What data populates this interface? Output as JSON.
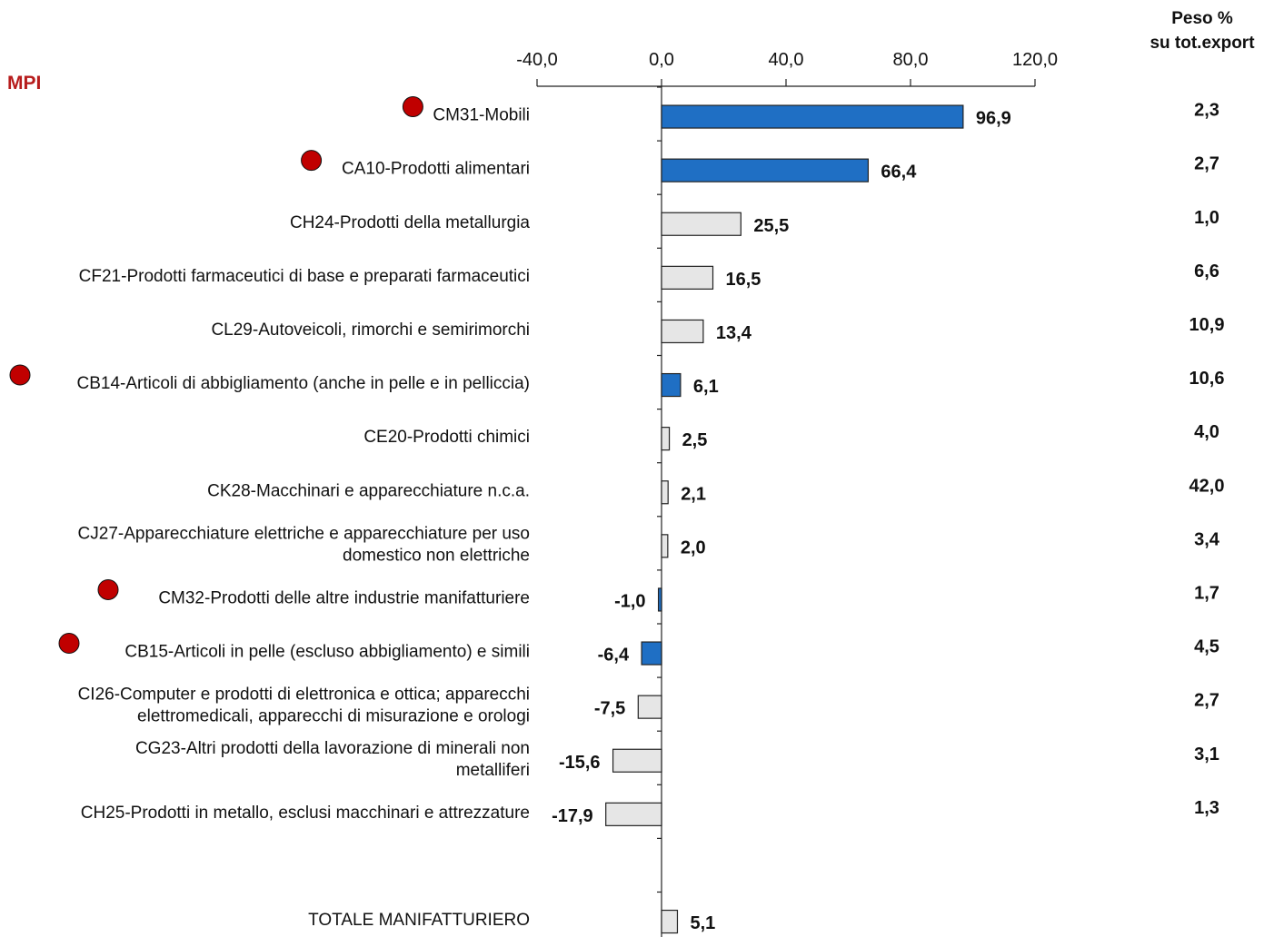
{
  "chart_data": {
    "type": "bar",
    "orientation": "horizontal",
    "xlim": [
      -40,
      120
    ],
    "x_ticks": [
      -40,
      0,
      40,
      80,
      120
    ],
    "x_tick_labels": [
      "-40,0",
      "0,0",
      "40,0",
      "80,0",
      "120,0"
    ],
    "grid": false,
    "mpi_label": "MPI",
    "peso_header": [
      "Peso %",
      "su tot.export"
    ],
    "colors": {
      "mpi_bar": "#1f6fc4",
      "other_bar": "#e6e6e6",
      "bar_stroke": "#222222",
      "mpi_dot": "#c00000"
    },
    "categories": [
      {
        "label": [
          "CM31-Mobili"
        ],
        "value": 96.9,
        "value_label": "96,9",
        "peso": "2,3",
        "mpi": true
      },
      {
        "label": [
          "CA10-Prodotti alimentari"
        ],
        "value": 66.4,
        "value_label": "66,4",
        "peso": "2,7",
        "mpi": true
      },
      {
        "label": [
          "CH24-Prodotti della metallurgia"
        ],
        "value": 25.5,
        "value_label": "25,5",
        "peso": "1,0",
        "mpi": false
      },
      {
        "label": [
          "CF21-Prodotti farmaceutici di base e preparati farmaceutici"
        ],
        "value": 16.5,
        "value_label": "16,5",
        "peso": "6,6",
        "mpi": false
      },
      {
        "label": [
          "CL29-Autoveicoli, rimorchi e semirimorchi"
        ],
        "value": 13.4,
        "value_label": "13,4",
        "peso": "10,9",
        "mpi": false
      },
      {
        "label": [
          "CB14-Articoli di abbigliamento (anche in pelle e in pelliccia)"
        ],
        "value": 6.1,
        "value_label": "6,1",
        "peso": "10,6",
        "mpi": true
      },
      {
        "label": [
          "CE20-Prodotti chimici"
        ],
        "value": 2.5,
        "value_label": "2,5",
        "peso": "4,0",
        "mpi": false
      },
      {
        "label": [
          "CK28-Macchinari e apparecchiature n.c.a."
        ],
        "value": 2.1,
        "value_label": "2,1",
        "peso": "42,0",
        "mpi": false
      },
      {
        "label": [
          "CJ27-Apparecchiature elettriche e apparecchiature per uso",
          "domestico non elettriche"
        ],
        "value": 2.0,
        "value_label": "2,0",
        "peso": "3,4",
        "mpi": false
      },
      {
        "label": [
          "CM32-Prodotti delle altre industrie manifatturiere"
        ],
        "value": -1.0,
        "value_label": "-1,0",
        "peso": "1,7",
        "mpi": true
      },
      {
        "label": [
          "CB15-Articoli in pelle (escluso abbigliamento) e simili"
        ],
        "value": -6.4,
        "value_label": "-6,4",
        "peso": "4,5",
        "mpi": true
      },
      {
        "label": [
          "CI26-Computer e prodotti di elettronica e ottica; apparecchi",
          "elettromedicali, apparecchi di misurazione e orologi"
        ],
        "value": -7.5,
        "value_label": "-7,5",
        "peso": "2,7",
        "mpi": false
      },
      {
        "label": [
          "CG23-Altri prodotti della lavorazione di minerali non",
          "metalliferi"
        ],
        "value": -15.6,
        "value_label": "-15,6",
        "peso": "3,1",
        "mpi": false
      },
      {
        "label": [
          "CH25-Prodotti in metallo, esclusi macchinari e attrezzature"
        ],
        "value": -17.9,
        "value_label": "-17,9",
        "peso": "1,3",
        "mpi": false
      },
      {
        "label": [],
        "value": null,
        "value_label": "",
        "peso": "",
        "mpi": false
      },
      {
        "label": [
          "TOTALE MANIFATTURIERO"
        ],
        "value": 5.1,
        "value_label": "5,1",
        "peso": "",
        "mpi": false
      }
    ]
  }
}
